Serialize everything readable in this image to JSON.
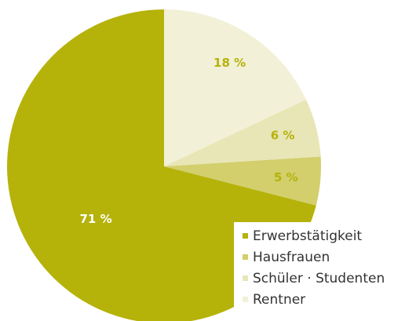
{
  "chart_data": {
    "type": "pie",
    "categories": [
      "Erwerbstätigkeit",
      "Hausfrauen",
      "Schüler · Studenten",
      "Rentner"
    ],
    "values": [
      71,
      5,
      6,
      18
    ],
    "value_labels": [
      "71 %",
      "5 %",
      "6 %",
      "18 %"
    ],
    "colors": [
      "#b5b20a",
      "#d2cf6c",
      "#e8e6b6",
      "#f2f0d6"
    ],
    "legend": "bottom-right"
  }
}
